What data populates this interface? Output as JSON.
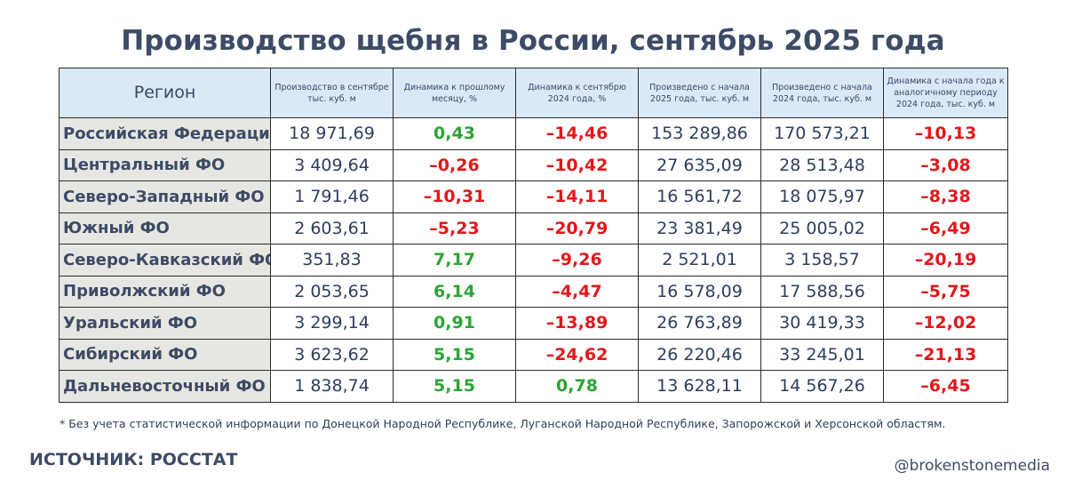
{
  "title": "Производство щебня в России, сентябрь 2025 года",
  "table": {
    "headers": [
      "Регион",
      "Производство в сентябре тыс. куб. м",
      "Динамика к прошлому месяцу, %",
      "Динамика к сентябрю 2024 года, %",
      "Произведено с начала 2025 года, тыс. куб. м",
      "Произведено с начала 2024 года, тыс. куб. м",
      "Динамика с начала года к аналогичному периоду 2024 года, тыс. куб. м"
    ],
    "rows": [
      {
        "region": "Российская Федерация*",
        "sep": "18 971,69",
        "mom": "0,43",
        "yoy": "–14,46",
        "ytd2025": "153 289,86",
        "ytd2024": "170 573,21",
        "ytd_dyn": "–10,13"
      },
      {
        "region": "Центральный ФО",
        "sep": "3 409,64",
        "mom": "–0,26",
        "yoy": "–10,42",
        "ytd2025": "27 635,09",
        "ytd2024": "28 513,48",
        "ytd_dyn": "–3,08"
      },
      {
        "region": "Северо-Западный ФО",
        "sep": "1 791,46",
        "mom": "–10,31",
        "yoy": "–14,11",
        "ytd2025": "16 561,72",
        "ytd2024": "18 075,97",
        "ytd_dyn": "–8,38"
      },
      {
        "region": "Южный ФО",
        "sep": "2 603,61",
        "mom": "–5,23",
        "yoy": "–20,79",
        "ytd2025": "23 381,49",
        "ytd2024": "25 005,02",
        "ytd_dyn": "–6,49"
      },
      {
        "region": "Северо-Кавказский ФО",
        "sep": "351,83",
        "mom": "7,17",
        "yoy": "–9,26",
        "ytd2025": "2 521,01",
        "ytd2024": "3 158,57",
        "ytd_dyn": "–20,19"
      },
      {
        "region": "Приволжский ФО",
        "sep": "2 053,65",
        "mom": "6,14",
        "yoy": "–4,47",
        "ytd2025": "16 578,09",
        "ytd2024": "17 588,56",
        "ytd_dyn": "–5,75"
      },
      {
        "region": "Уральский ФО",
        "sep": "3 299,14",
        "mom": "0,91",
        "yoy": "–13,89",
        "ytd2025": "26 763,89",
        "ytd2024": "30 419,33",
        "ytd_dyn": "–12,02"
      },
      {
        "region": "Сибирский ФО",
        "sep": "3 623,62",
        "mom": "5,15",
        "yoy": "–24,62",
        "ytd2025": "26 220,46",
        "ytd2024": "33 245,01",
        "ytd_dyn": "–21,13"
      },
      {
        "region": "Дальневосточный ФО",
        "sep": "1 838,74",
        "mom": "5,15",
        "yoy": "0,78",
        "ytd2025": "13 628,11",
        "ytd2024": "14 567,26",
        "ytd_dyn": "–6,45"
      }
    ]
  },
  "footnote": "* Без учета статистической информации по Донецкой Народной Республике, Луганской Народной Республике, Запорожской и Херсонской областям.",
  "source": "ИСТОЧНИК: РОССТАТ",
  "handle": "@brokenstonemedia",
  "colors": {
    "positive": "#2ba534",
    "negative": "#e3171b",
    "header_bg": "#dae9f6",
    "region_bg": "#e6e7e2",
    "text": "#3d4b66"
  }
}
